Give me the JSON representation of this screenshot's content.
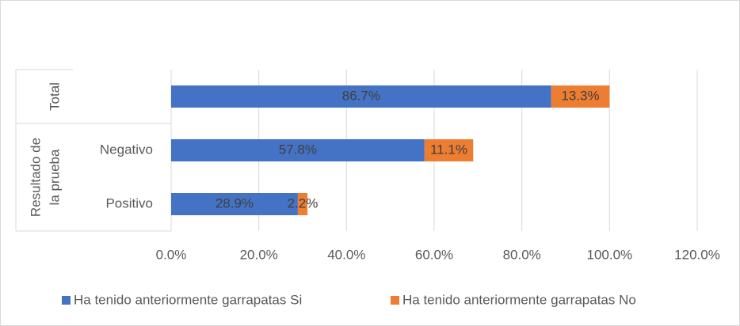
{
  "chart_data": {
    "type": "bar",
    "orientation": "horizontal",
    "stacked": true,
    "categories": [
      null,
      "Negativo",
      "Positivo"
    ],
    "category_groups": [
      {
        "name": [
          "Total"
        ],
        "size": 1
      },
      {
        "name": [
          "Resultado de",
          "la prueba"
        ],
        "size": 2
      }
    ],
    "series": [
      {
        "name": "Ha tenido anteriormente garrapatas Si",
        "color": "#4472c4",
        "values": [
          86.7,
          57.8,
          28.9
        ],
        "value_labels": [
          "86.7%",
          "57.8%",
          "28.9%"
        ]
      },
      {
        "name": "Ha tenido anteriormente garrapatas No",
        "color": "#ed7d31",
        "values": [
          13.3,
          11.1,
          2.2
        ],
        "value_labels": [
          "13.3%",
          "11.1%",
          "2.2%"
        ]
      }
    ],
    "xlim": [
      0,
      120
    ],
    "xticks": [
      {
        "value": 0,
        "label": "0.0%"
      },
      {
        "value": 20,
        "label": "20.0%"
      },
      {
        "value": 40,
        "label": "40.0%"
      },
      {
        "value": 60,
        "label": "60.0%"
      },
      {
        "value": 80,
        "label": "80.0%"
      },
      {
        "value": 100,
        "label": "100.0%"
      },
      {
        "value": 120,
        "label": "120.0%"
      }
    ],
    "grid": true,
    "legend": "bottom"
  }
}
